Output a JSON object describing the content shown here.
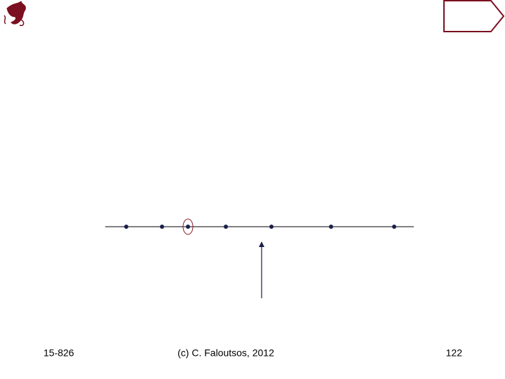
{
  "footer": {
    "course": "15-826",
    "copyright": "(c) C. Faloutsos, 2012",
    "page_number": "122"
  }
}
